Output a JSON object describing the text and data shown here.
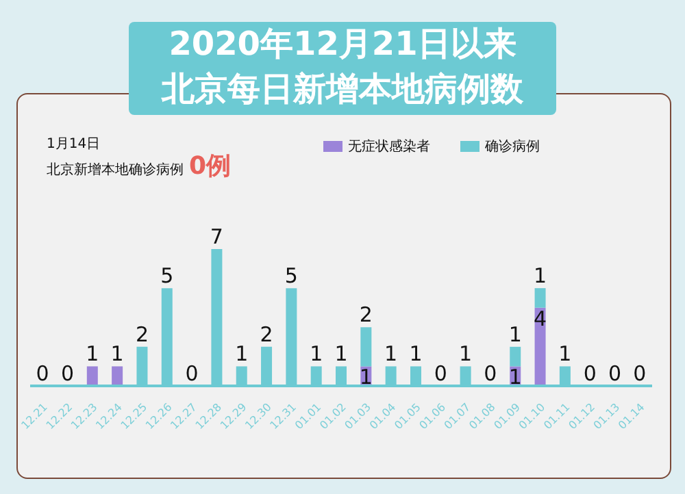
{
  "chart_data": {
    "type": "bar",
    "title": "2020年12月21日以来",
    "subtitle": "北京每日新增本地病例数",
    "annotations": [
      "1月14日",
      "北京新增本地确诊病例",
      "0例"
    ],
    "categories": [
      "12.21",
      "12.22",
      "12.23",
      "12.24",
      "12.25",
      "12.26",
      "12.27",
      "12.28",
      "12.29",
      "12.30",
      "12.31",
      "01.01",
      "01.02",
      "01.03",
      "01.04",
      "01.05",
      "01.06",
      "01.07",
      "01.08",
      "01.09",
      "01.10",
      "01.11",
      "01.12",
      "01.13",
      "01.14"
    ],
    "stacked": true,
    "legend": "top",
    "grid": false,
    "series": [
      {
        "name": "无症状感染者",
        "color": "#9b84d9",
        "values": [
          0,
          0,
          1,
          1,
          0,
          0,
          0,
          0,
          0,
          0,
          0,
          0,
          0,
          1,
          0,
          0,
          0,
          0,
          0,
          1,
          4,
          0,
          0,
          0,
          0
        ],
        "value_labels": [
          null,
          null,
          "1",
          "1",
          null,
          null,
          null,
          null,
          null,
          null,
          null,
          null,
          null,
          "1",
          null,
          null,
          null,
          null,
          null,
          "1",
          "4",
          null,
          null,
          null,
          null
        ]
      },
      {
        "name": "确诊病例",
        "color": "#6ccad3",
        "values": [
          0,
          0,
          0,
          0,
          2,
          5,
          0,
          7,
          1,
          2,
          5,
          1,
          1,
          2,
          1,
          1,
          0,
          1,
          0,
          1,
          1,
          1,
          0,
          0,
          0
        ],
        "value_labels": [
          "0",
          "0",
          null,
          null,
          "2",
          "5",
          "0",
          "7",
          "1",
          "2",
          "5",
          "1",
          "1",
          "2",
          "1",
          "1",
          "0",
          "1",
          "0",
          "1",
          "1",
          "1",
          "0",
          "0",
          "0"
        ]
      }
    ]
  }
}
